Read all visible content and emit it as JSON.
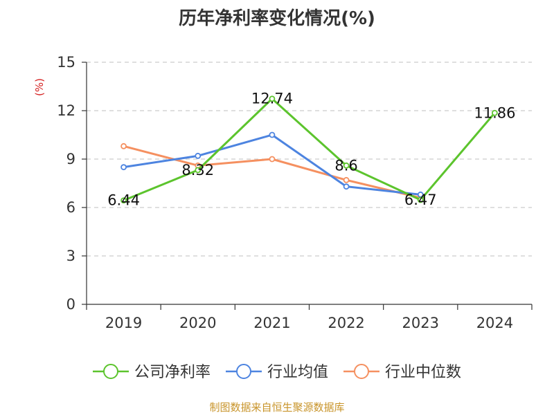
{
  "chart_data": {
    "type": "line",
    "title": "历年净利率变化情况(%)",
    "ylabel": "(%)",
    "categories": [
      "2019",
      "2020",
      "2021",
      "2022",
      "2023",
      "2024"
    ],
    "ylim": [
      0,
      15
    ],
    "yticks": [
      0,
      3,
      6,
      9,
      12,
      15
    ],
    "grid": true,
    "legend_position": "bottom",
    "series": [
      {
        "name": "公司净利率",
        "color": "#5cc42d",
        "values": [
          6.44,
          8.32,
          12.74,
          8.6,
          6.47,
          11.86
        ],
        "labels": [
          "6.44",
          "8.32",
          "12.74",
          "8.6",
          "6.47",
          "11.86"
        ]
      },
      {
        "name": "行业均值",
        "color": "#4d84e0",
        "values": [
          8.5,
          9.2,
          10.5,
          7.3,
          6.8,
          null
        ]
      },
      {
        "name": "行业中位数",
        "color": "#f59060",
        "values": [
          9.8,
          8.6,
          9.0,
          7.7,
          6.6,
          null
        ]
      }
    ]
  },
  "footer": {
    "text": "制图数据来自恒生聚源数据库",
    "color": "#c8942a"
  },
  "unit_color": "#d42020",
  "axis_color": "#333333",
  "grid_color": "#cccccc"
}
